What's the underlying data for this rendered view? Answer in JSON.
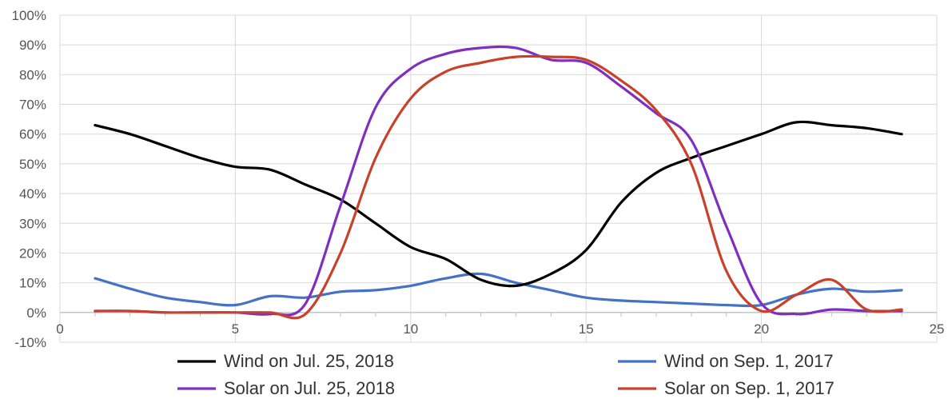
{
  "chart_data": {
    "type": "line",
    "title": "",
    "xlabel": "",
    "ylabel": "",
    "xlim": [
      0,
      25
    ],
    "ylim": [
      -10,
      100
    ],
    "x_ticks": [
      "0",
      "5",
      "10",
      "15",
      "20",
      "25"
    ],
    "y_ticks": [
      "-10%",
      "0%",
      "10%",
      "20%",
      "30%",
      "40%",
      "50%",
      "60%",
      "70%",
      "80%",
      "90%",
      "100%"
    ],
    "grid": true,
    "legend_position": "bottom",
    "x": [
      1,
      2,
      3,
      4,
      5,
      6,
      7,
      8,
      9,
      10,
      11,
      12,
      13,
      14,
      15,
      16,
      17,
      18,
      19,
      20,
      21,
      22,
      23,
      24
    ],
    "series": [
      {
        "name": "Wind on Jul. 25, 2018",
        "color": "#000000",
        "values": [
          63,
          60,
          56,
          52,
          49,
          48,
          43,
          38,
          30,
          22,
          18,
          11,
          9,
          13,
          21,
          37,
          47,
          52,
          56,
          60,
          64,
          63,
          62,
          60
        ]
      },
      {
        "name": "Wind on Sep. 1, 2017",
        "color": "#4472c4",
        "values": [
          11.5,
          8,
          5,
          3.5,
          2.5,
          5.5,
          5,
          7,
          7.5,
          9,
          11.5,
          13,
          10,
          7.5,
          5,
          4,
          3.5,
          3,
          2.5,
          2.5,
          6,
          8,
          7,
          7.5
        ]
      },
      {
        "name": "Solar on Jul. 25, 2018",
        "color": "#7f2fbf",
        "values": [
          0.5,
          0.5,
          0,
          0,
          0,
          -0.5,
          3,
          36,
          69,
          82,
          87,
          89,
          89,
          85,
          84,
          76,
          67,
          58,
          29,
          3,
          -0.5,
          1,
          0.5,
          0.5
        ]
      },
      {
        "name": "Solar on Sep. 1, 2017",
        "color": "#c8412a",
        "values": [
          0.5,
          0.5,
          0,
          0,
          0,
          0,
          -0.5,
          20,
          52,
          72,
          81,
          84,
          86,
          86,
          85,
          78,
          68,
          50,
          14,
          0.5,
          6,
          11,
          1,
          1
        ]
      }
    ]
  }
}
